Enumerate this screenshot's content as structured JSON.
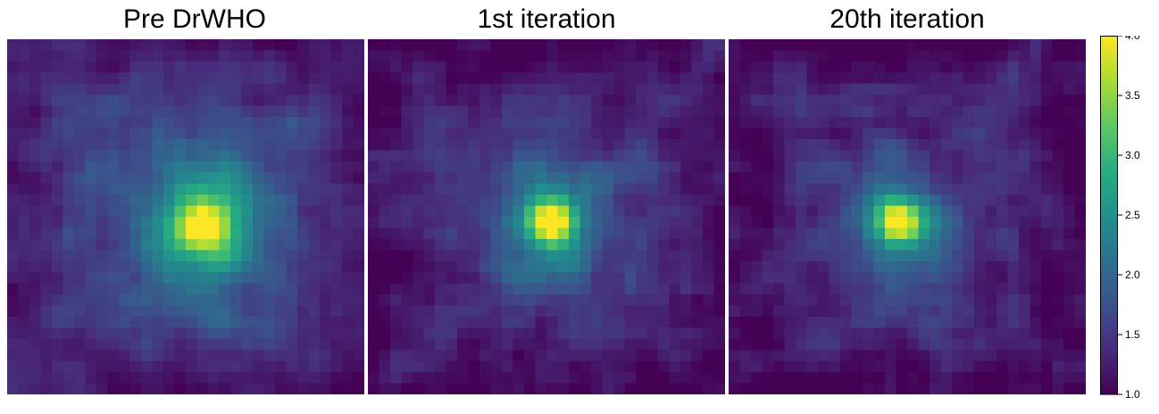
{
  "chart_data": {
    "type": "heatmap",
    "colormap": "viridis",
    "colorbar": {
      "vmin": 1.0,
      "vmax": 4.0,
      "ticks": [
        1.0,
        1.5,
        2.0,
        2.5,
        3.0,
        3.5,
        4.0
      ],
      "tick_labels": [
        "1.0",
        "1.5",
        "2.0",
        "2.5",
        "3.0",
        "3.5",
        "4.0"
      ],
      "placement": "right"
    },
    "grid_size": [
      32,
      32
    ],
    "panels": [
      {
        "title": "Pre DrWHO",
        "peak": {
          "col": 17.5,
          "row": 16.8,
          "value": 4.0
        },
        "core_sigma": 1.5,
        "halo": {
          "amplitude": 1.55,
          "sigma_x": 3.6,
          "sigma_y": 4.4
        },
        "background": 1.55,
        "texture_amplitude": 0.32,
        "seed": 7
      },
      {
        "title": "1st iteration",
        "peak": {
          "col": 16.5,
          "row": 16.5,
          "value": 4.0
        },
        "core_sigma": 1.35,
        "halo": {
          "amplitude": 1.2,
          "sigma_x": 3.5,
          "sigma_y": 3.8
        },
        "background": 1.4,
        "texture_amplitude": 0.38,
        "seed": 21
      },
      {
        "title": "20th iteration",
        "peak": {
          "col": 15.2,
          "row": 16.5,
          "value": 4.0
        },
        "core_sigma": 1.35,
        "halo": {
          "amplitude": 1.1,
          "sigma_x": 3.5,
          "sigma_y": 3.6
        },
        "background": 1.35,
        "texture_amplitude": 0.4,
        "seed": 33
      }
    ]
  }
}
